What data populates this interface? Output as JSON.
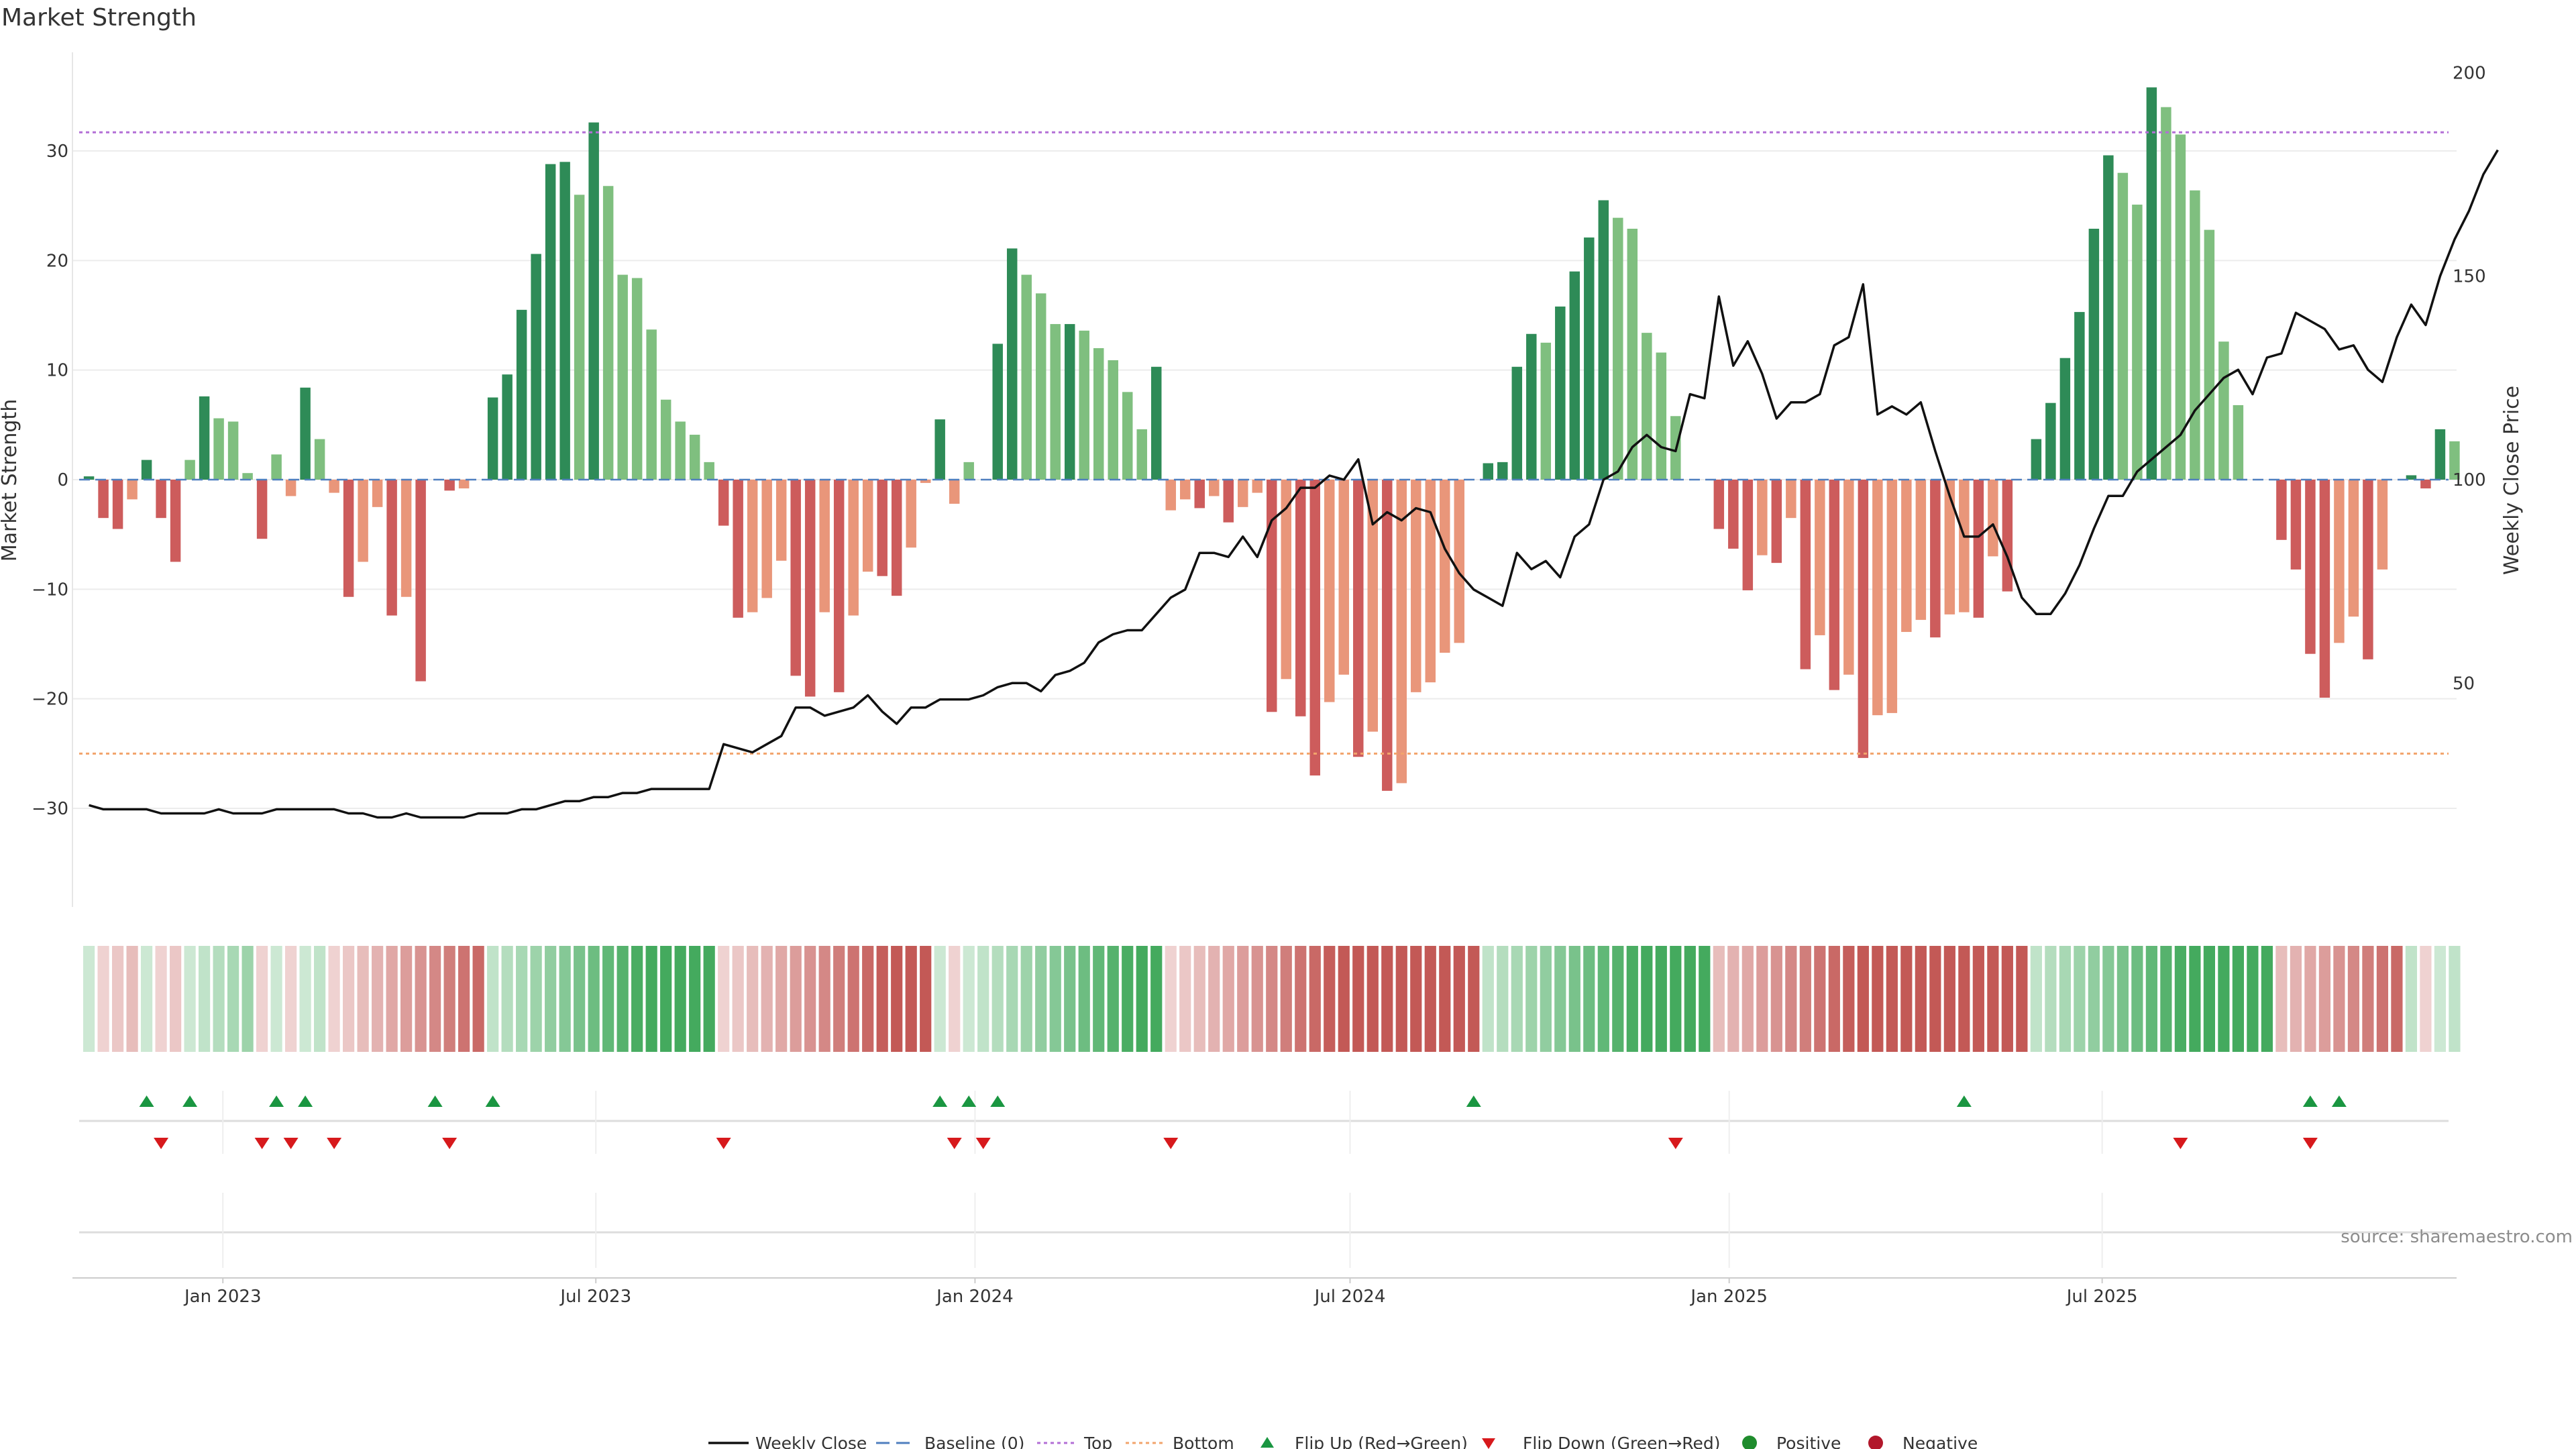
{
  "chart_data": {
    "type": "bar",
    "title": "Market Strength",
    "ylabel": "Market Strength",
    "y2label": "Weekly Close Price",
    "ylim": [
      -39,
      39
    ],
    "y2lim": [
      -5,
      205
    ],
    "yticks": [
      -30,
      -20,
      -10,
      0,
      10,
      20,
      30
    ],
    "y2ticks": [
      50,
      100,
      150,
      200
    ],
    "top_line": 31.7,
    "bottom_line": -25,
    "x_start": "2022-10-20",
    "x_end": "2025-12-20",
    "xtick_labels": [
      "Jan 2023",
      "Jul 2023",
      "Jan 2024",
      "Jul 2024",
      "Jan 2025",
      "Jul 2025"
    ],
    "xtick_dates": [
      "2023-01-01",
      "2023-07-01",
      "2024-01-01",
      "2024-07-01",
      "2025-01-01",
      "2025-07-01"
    ],
    "first_week": "2022-10-28",
    "week_days": 7,
    "strength": [
      0.3,
      -3.5,
      -4.5,
      -1.8,
      1.8,
      -3.5,
      -7.5,
      1.8,
      7.6,
      5.6,
      5.3,
      0.6,
      -5.4,
      2.3,
      -1.5,
      8.4,
      3.7,
      -1.2,
      -10.7,
      -7.5,
      -2.5,
      -12.4,
      -10.7,
      -18.4,
      0.0,
      -1.0,
      -0.8,
      0.0,
      7.5,
      9.6,
      15.5,
      20.6,
      28.8,
      29.0,
      26.0,
      32.6,
      26.8,
      18.7,
      18.4,
      13.7,
      7.3,
      5.3,
      4.1,
      1.6,
      -4.2,
      -12.6,
      -12.1,
      -10.8,
      -7.4,
      -17.9,
      -19.8,
      -12.1,
      -19.4,
      -12.4,
      -8.4,
      -8.8,
      -10.6,
      -6.2,
      -0.3,
      5.5,
      -2.2,
      1.6,
      0.0,
      12.4,
      21.1,
      18.7,
      17.0,
      14.2,
      14.2,
      13.6,
      12.0,
      10.9,
      8.0,
      4.6,
      10.3,
      -2.8,
      -1.8,
      -2.6,
      -1.5,
      -3.9,
      -2.5,
      -1.2,
      -21.2,
      -18.2,
      -21.6,
      -27.0,
      -20.3,
      -17.8,
      -25.3,
      -23.0,
      -28.4,
      -27.7,
      -19.4,
      -18.5,
      -15.8,
      -14.9,
      0.0,
      1.5,
      1.6,
      10.3,
      13.3,
      12.5,
      15.8,
      19.0,
      22.1,
      25.5,
      23.9,
      22.9,
      13.4,
      11.6,
      5.8,
      0.0,
      0.0,
      -4.5,
      -6.3,
      -10.1,
      -6.9,
      -7.6,
      -3.5,
      -17.3,
      -14.2,
      -19.2,
      -17.8,
      -25.4,
      -21.5,
      -21.3,
      -13.9,
      -12.8,
      -14.4,
      -12.3,
      -12.1,
      -12.6,
      -7.0,
      -10.2,
      0.0,
      3.7,
      7.0,
      11.1,
      15.3,
      22.9,
      29.6,
      28.0,
      25.1,
      35.8,
      34.0,
      31.5,
      26.4,
      22.8,
      12.6,
      6.8,
      0.0,
      0.0,
      -5.5,
      -8.2,
      -15.9,
      -19.9,
      -14.9,
      -12.5,
      -16.4,
      -8.2,
      0.0,
      0.4,
      -0.8,
      4.6,
      3.5
    ],
    "close": [
      20,
      19,
      19,
      19,
      19,
      18,
      18,
      18,
      18,
      19,
      18,
      18,
      18,
      19,
      19,
      19,
      19,
      19,
      18,
      18,
      17,
      17,
      18,
      17,
      17,
      17,
      17,
      18,
      18,
      18,
      19,
      19,
      20,
      21,
      21,
      22,
      22,
      23,
      23,
      24,
      24,
      24,
      24,
      24,
      35,
      34,
      33,
      35,
      37,
      44,
      44,
      42,
      43,
      44,
      47,
      43,
      40,
      44,
      44,
      46,
      46,
      46,
      47,
      49,
      50,
      50,
      48,
      52,
      53,
      55,
      60,
      62,
      63,
      63,
      67,
      71,
      73,
      82,
      82,
      81,
      86,
      81,
      90,
      93,
      98,
      98,
      101,
      100,
      105,
      89,
      92,
      90,
      93,
      92,
      83,
      77,
      73,
      71,
      69,
      82,
      78,
      80,
      76,
      86,
      89,
      100,
      102,
      108,
      111,
      108,
      107,
      121,
      120,
      145,
      128,
      134,
      126,
      115,
      119,
      119,
      121,
      133,
      135,
      148,
      116,
      118,
      116,
      119,
      107,
      96,
      86,
      86,
      89,
      81,
      71,
      67,
      67,
      72,
      79,
      88,
      96,
      96,
      102,
      105,
      108,
      111,
      117,
      121,
      125,
      127,
      121,
      130,
      131,
      141,
      139,
      137,
      132,
      133,
      127,
      124,
      135,
      143,
      138,
      150,
      159,
      166,
      175,
      181
    ]
  },
  "lower_panel": {
    "flip_up_weeks": [
      4,
      7,
      13,
      15,
      24,
      28,
      59,
      61,
      63,
      96,
      130,
      154,
      156
    ],
    "flip_down_weeks": [
      5,
      12,
      14,
      17,
      25,
      44,
      60,
      62,
      75,
      110,
      145,
      154
    ]
  },
  "colors": {
    "strong_green": "#2e8b57",
    "light_green": "#7fbf7f",
    "strong_red": "#cd5c5c",
    "light_red": "#e9967a",
    "price_line": "#111111",
    "top_line": "#b36fd6",
    "bottom_line": "#f2a46c",
    "baseline": "#4f7fbf",
    "flip_up": "#1a9641",
    "flip_down": "#d7191c",
    "positive": "#1f8c2d",
    "negative": "#b2182b",
    "heat_green": "#3aa655",
    "heat_red": "#c0504d"
  },
  "legend": {
    "weekly_close": "Weekly Close",
    "baseline": "Baseline (0)",
    "top": "Top",
    "bottom": "Bottom",
    "flip_up": "Flip Up (Red→Green)",
    "flip_down": "Flip Down (Green→Red)",
    "positive": "Positive",
    "negative": "Negative"
  },
  "source_text": "source: sharemaestro.com"
}
